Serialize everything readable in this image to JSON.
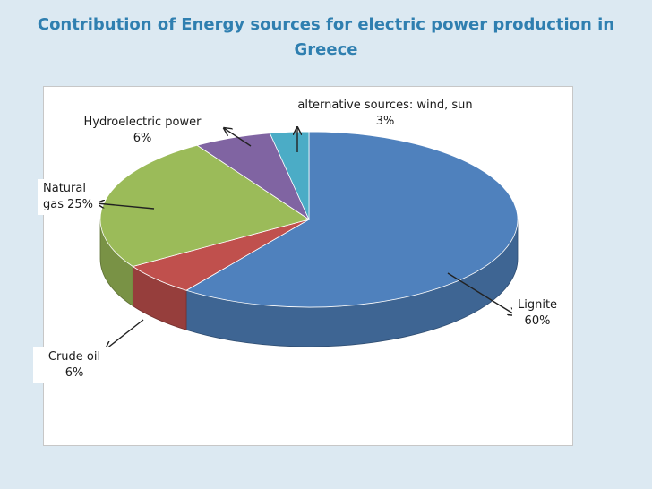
{
  "title": {
    "line1": "Contribution of Energy sources for electric power production in",
    "line2": "Greece"
  },
  "colors": {
    "background": "#dce9f2",
    "title": "#2f7fb0",
    "lignite": "#4f81bd",
    "crude_oil": "#c0504d",
    "natural_gas": "#9bbb59",
    "hydro": "#8064a2",
    "alternative": "#4bacc6"
  },
  "chart_data": {
    "type": "pie",
    "style": "3d",
    "title": "Contribution of Energy sources for electric power production in Greece",
    "slices": [
      {
        "name": "Lignite",
        "value": 60,
        "label": "60%",
        "color": "#4f81bd"
      },
      {
        "name": "Crude oil",
        "value": 6,
        "label": "6%",
        "color": "#c0504d"
      },
      {
        "name": "Natural gas",
        "value": 25,
        "label": "25%",
        "color": "#9bbb59"
      },
      {
        "name": "Hydroelectric power",
        "value": 6,
        "label": "6%",
        "color": "#8064a2"
      },
      {
        "name": "alternative sources: wind, sun",
        "value": 3,
        "label": "3%",
        "color": "#4bacc6"
      }
    ]
  },
  "labels": {
    "lignite": {
      "name": "Lignite",
      "pct": "60%"
    },
    "crude_oil": {
      "name": "Crude oil",
      "pct": "6%"
    },
    "natural_gas": {
      "name": "Natural",
      "pct": "gas 25%"
    },
    "hydro": {
      "name": "Hydroelectric power",
      "pct": "6%"
    },
    "alternative": {
      "name": "alternative sources: wind, sun",
      "pct": "3%"
    }
  }
}
